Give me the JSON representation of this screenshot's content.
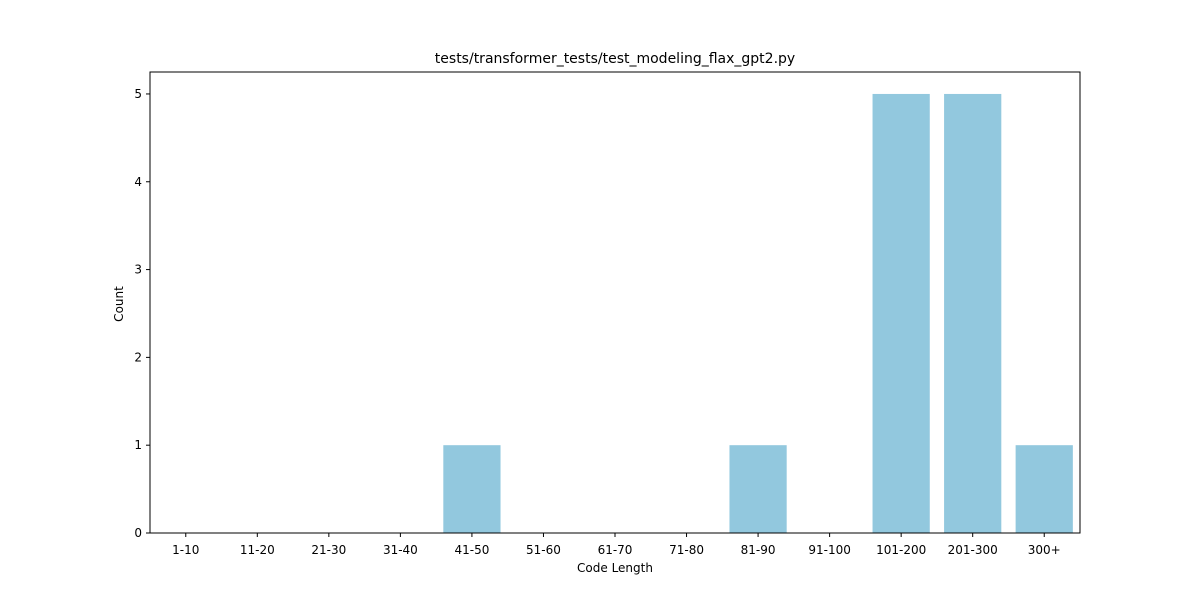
{
  "chart_data": {
    "type": "bar",
    "title": "tests/transformer_tests/test_modeling_flax_gpt2.py",
    "xlabel": "Code Length",
    "ylabel": "Count",
    "categories": [
      "1-10",
      "11-20",
      "21-30",
      "31-40",
      "41-50",
      "51-60",
      "61-70",
      "71-80",
      "81-90",
      "91-100",
      "101-200",
      "201-300",
      "300+"
    ],
    "values": [
      0,
      0,
      0,
      0,
      1,
      0,
      0,
      0,
      1,
      0,
      5,
      5,
      1
    ],
    "yticks": [
      "0",
      "1",
      "2",
      "3",
      "4",
      "5"
    ],
    "ylim": [
      0,
      5.25
    ],
    "grid": false,
    "bar_color": "#92c8de"
  }
}
